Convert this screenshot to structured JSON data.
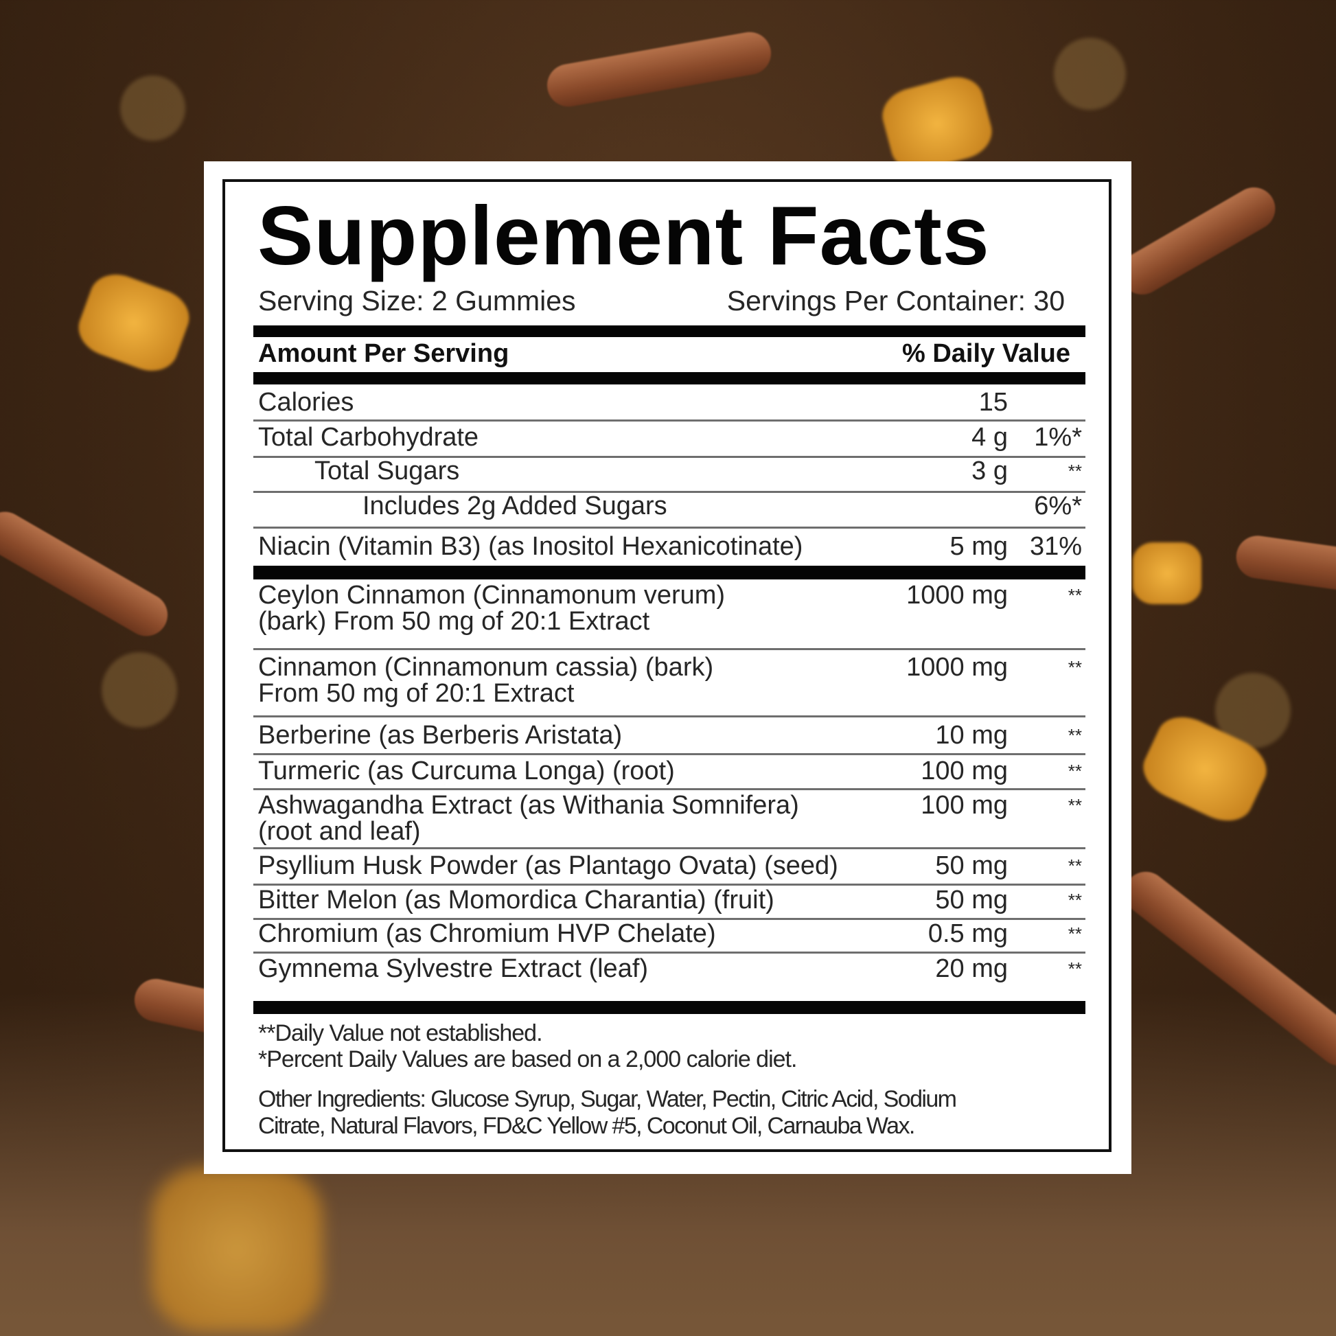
{
  "title": "Supplement Facts",
  "serving_size": "Serving Size: 2 Gummies",
  "servings_per_container": "Servings Per Container: 30",
  "header": {
    "amount": "Amount Per Serving",
    "daily_value": "% Daily Value"
  },
  "rows": [
    {
      "name": "Calories",
      "lines": [
        "Calories"
      ],
      "amount": "15",
      "dv": "",
      "indent": 0
    },
    {
      "name": "Total Carbohydrate",
      "lines": [
        "Total Carbohydrate"
      ],
      "amount": "4 g",
      "dv": "1%*",
      "indent": 0
    },
    {
      "name": "Total Sugars",
      "lines": [
        "Total Sugars"
      ],
      "amount": "3 g",
      "dv": "**",
      "indent": 1
    },
    {
      "name": "Added Sugars",
      "lines": [
        "Includes 2g Added Sugars"
      ],
      "amount": "",
      "dv": "6%*",
      "indent": 2
    },
    {
      "name": "Niacin",
      "lines": [
        "Niacin (Vitamin B3) (as Inositol Hexanicotinate)"
      ],
      "amount": "5 mg",
      "dv": "31%",
      "indent": 0
    },
    {
      "name": "Ceylon Cinnamon",
      "lines": [
        "Ceylon Cinnamon (Cinnamonum verum)",
        "(bark) From 50 mg of 20:1 Extract"
      ],
      "amount": "1000 mg",
      "dv": "**",
      "indent": 0
    },
    {
      "name": "Cinnamon cassia",
      "lines": [
        "Cinnamon (Cinnamonum cassia) (bark)",
        "From 50 mg of 20:1 Extract"
      ],
      "amount": "1000 mg",
      "dv": "**",
      "indent": 0
    },
    {
      "name": "Berberine",
      "lines": [
        "Berberine (as Berberis Aristata)"
      ],
      "amount": "10 mg",
      "dv": "**",
      "indent": 0
    },
    {
      "name": "Turmeric",
      "lines": [
        "Turmeric (as Curcuma Longa) (root)"
      ],
      "amount": "100 mg",
      "dv": "**",
      "indent": 0
    },
    {
      "name": "Ashwagandha",
      "lines": [
        "Ashwagandha Extract (as Withania Somnifera)",
        "(root and leaf)"
      ],
      "amount": "100 mg",
      "dv": "**",
      "indent": 0
    },
    {
      "name": "Psyllium",
      "lines": [
        "Psyllium Husk Powder (as Plantago Ovata) (seed)"
      ],
      "amount": "50 mg",
      "dv": "**",
      "indent": 0
    },
    {
      "name": "Bitter Melon",
      "lines": [
        "Bitter Melon (as Momordica Charantia) (fruit)"
      ],
      "amount": "50 mg",
      "dv": "**",
      "indent": 0
    },
    {
      "name": "Chromium",
      "lines": [
        "Chromium (as Chromium HVP Chelate)"
      ],
      "amount": "0.5 mg",
      "dv": "**",
      "indent": 0
    },
    {
      "name": "Gymnema",
      "lines": [
        "Gymnema Sylvestre Extract (leaf)"
      ],
      "amount": "20 mg",
      "dv": "**",
      "indent": 0
    }
  ],
  "footnotes": [
    "**Daily Value not established.",
    "*Percent Daily Values are based on a 2,000 calorie diet."
  ],
  "other_ingredients": [
    "Other Ingredients: Glucose Syrup, Sugar, Water, Pectin, Citric Acid, Sodium",
    "Citrate, Natural Flavors, FD&C Yellow #5, Coconut Oil, Carnauba Wax."
  ]
}
